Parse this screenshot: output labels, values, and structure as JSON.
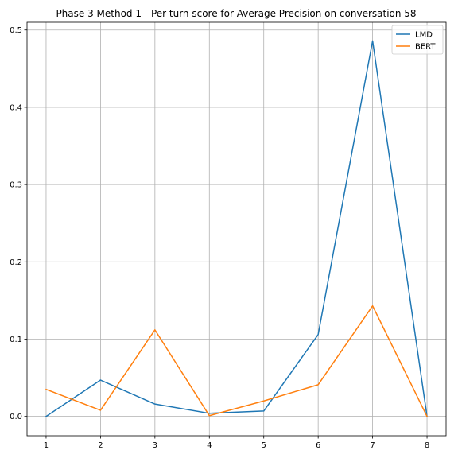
{
  "chart_data": {
    "type": "line",
    "title": "Phase 3 Method 1 - Per turn score for Average Precision on conversation 58",
    "xlabel": "",
    "ylabel": "",
    "x": [
      1,
      2,
      3,
      4,
      5,
      6,
      7,
      8
    ],
    "xticks": [
      "1",
      "2",
      "3",
      "4",
      "5",
      "6",
      "7",
      "8"
    ],
    "yticks": [
      "0.0",
      "0.1",
      "0.2",
      "0.3",
      "0.4",
      "0.5"
    ],
    "xlim": [
      0.65,
      8.35
    ],
    "ylim": [
      -0.025,
      0.51
    ],
    "grid": true,
    "legend_position": "top-right",
    "series": [
      {
        "name": "LMD",
        "color": "#1f77b4",
        "values": [
          0.0,
          0.047,
          0.016,
          0.004,
          0.007,
          0.106,
          0.486,
          0.0
        ]
      },
      {
        "name": "BERT",
        "color": "#ff7f0e",
        "values": [
          0.035,
          0.008,
          0.112,
          0.001,
          0.02,
          0.041,
          0.143,
          0.0
        ]
      }
    ]
  }
}
